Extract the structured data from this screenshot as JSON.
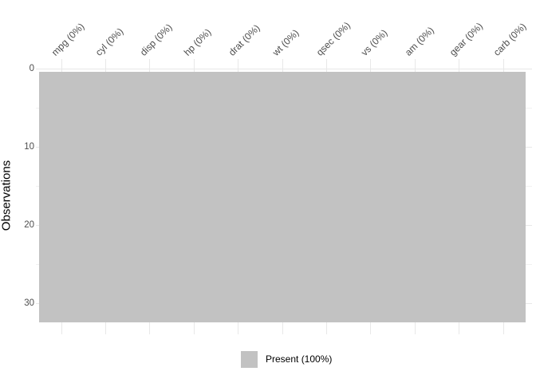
{
  "chart_data": {
    "type": "heatmap",
    "title": "",
    "ylabel": "Observations",
    "x_axis_position": "top",
    "x_tick_angle_deg": 45,
    "columns": [
      "mpg (0%)",
      "cyl (0%)",
      "disp (0%)",
      "hp (0%)",
      "drat (0%)",
      "wt (0%)",
      "qsec (0%)",
      "vs (0%)",
      "am (0%)",
      "gear (0%)",
      "carb (0%)"
    ],
    "column_missing_pct": [
      0,
      0,
      0,
      0,
      0,
      0,
      0,
      0,
      0,
      0,
      0
    ],
    "n_observations": 32,
    "yticks": [
      0,
      10,
      20,
      30
    ],
    "y_range": [
      0.5,
      32.5
    ],
    "y_axis_reversed": true,
    "grid": "on",
    "series": [
      {
        "name": "Present",
        "pct": 100
      }
    ],
    "legend": {
      "position": "bottom",
      "entries": [
        {
          "label": "Present (100%)",
          "color": "#C2C2C2"
        }
      ]
    },
    "colors": {
      "present_fill": "#C2C2C2",
      "grid_major": "#E8E8E8",
      "grid_minor": "#F1F1F1",
      "axis_text": "#4D4D4D",
      "title_text": "#000000",
      "background": "#FFFFFF"
    }
  }
}
